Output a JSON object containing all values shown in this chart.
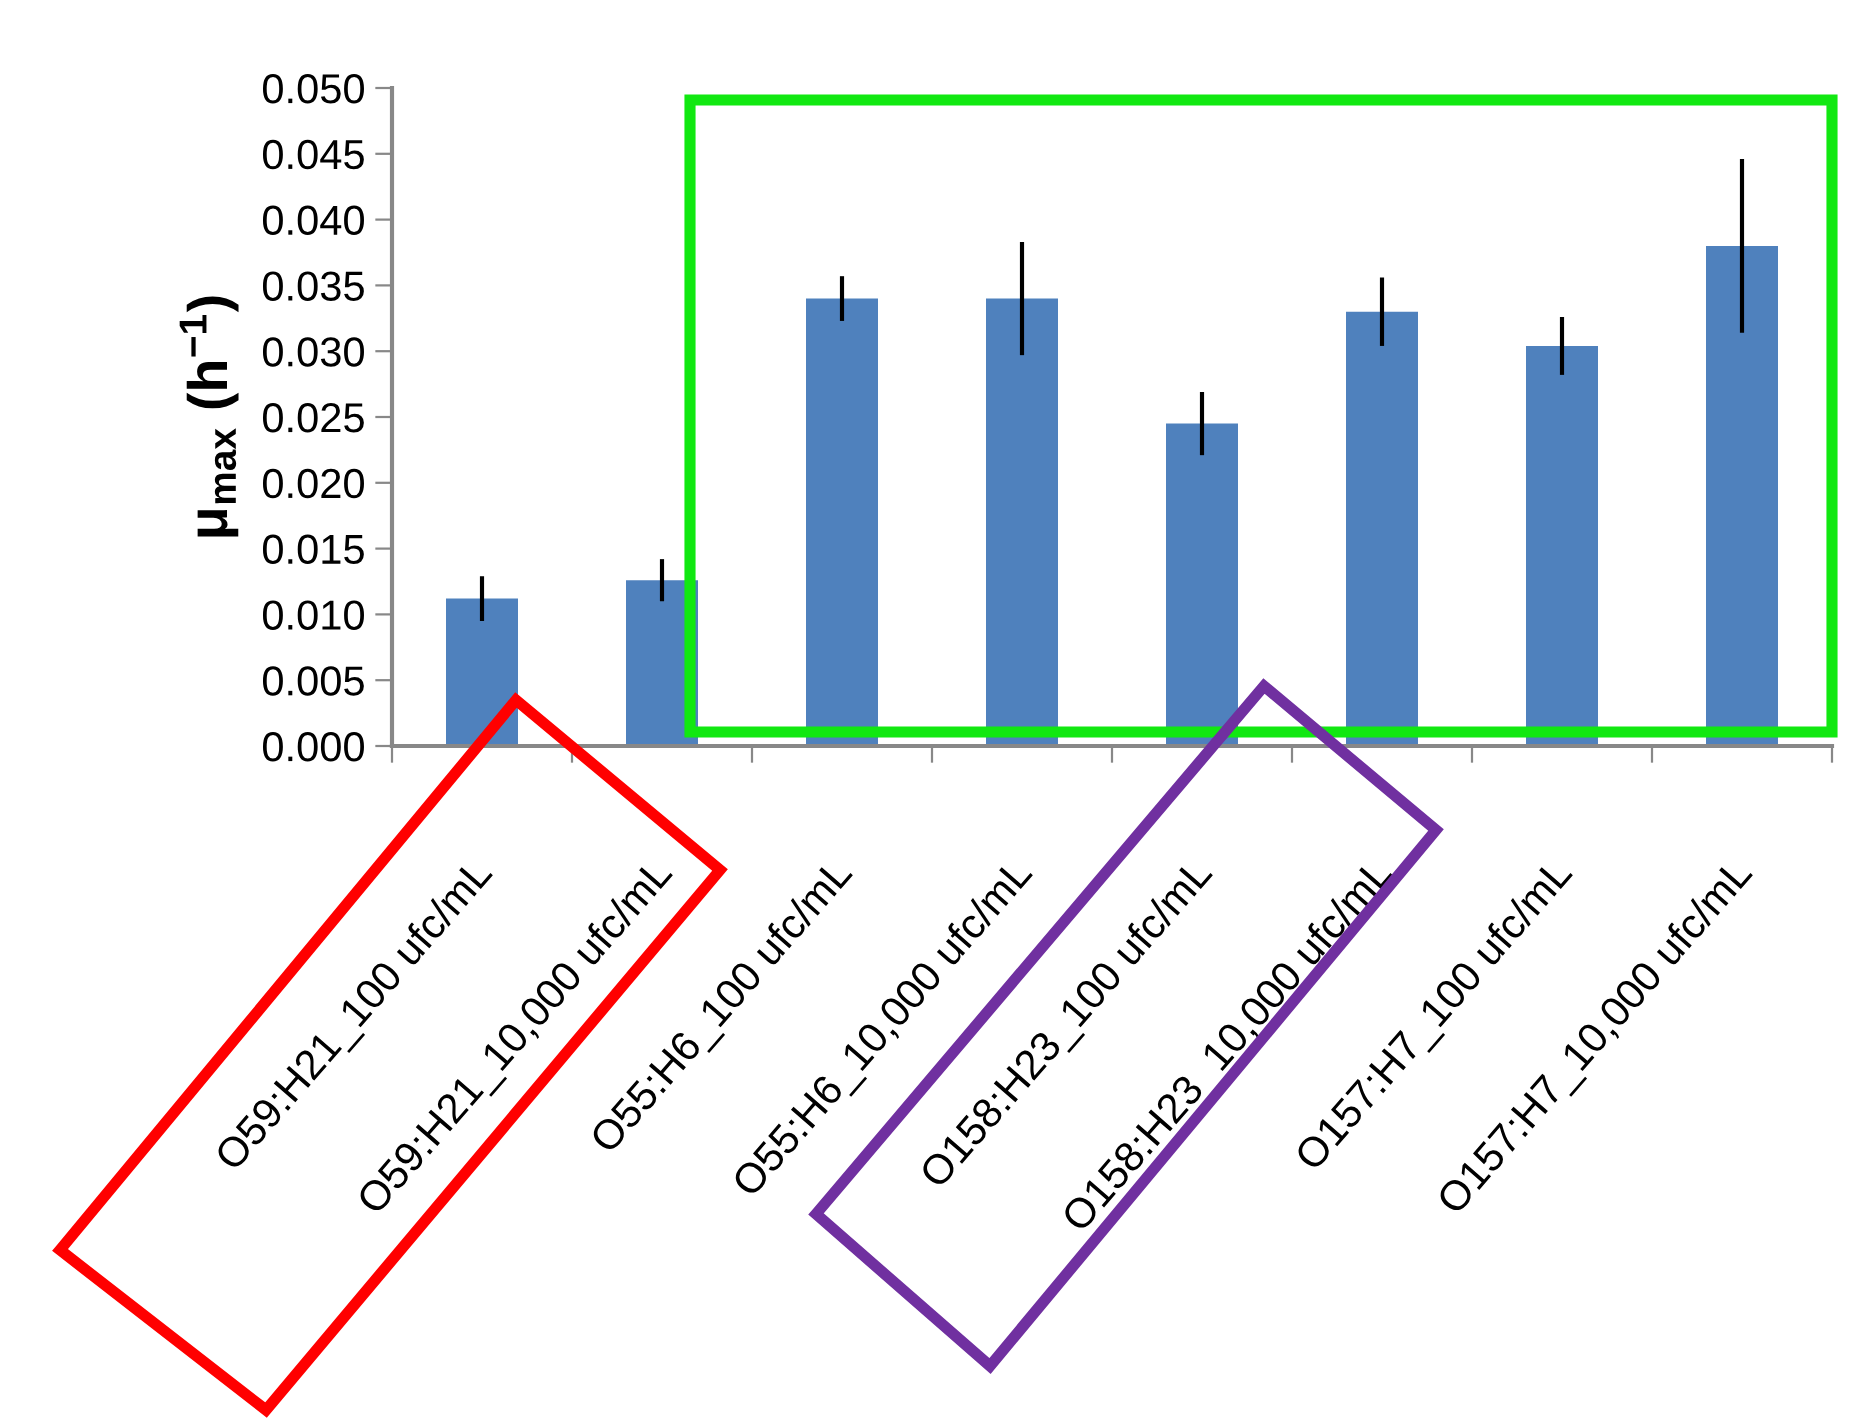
{
  "chart_data": {
    "type": "bar",
    "ylabel": "μ$_{max}$ (h$^{−1}$)",
    "categories": [
      "O59:H21_100 ufc/mL",
      "O59:H21_10,000 ufc/mL",
      "O55:H6_100 ufc/mL",
      "O55:H6_10,000 ufc/mL",
      "O158:H23_100 ufc/mL",
      "O158:H23_10,000 ufc/mL",
      "O157:H7_100 ufc/mL",
      "O157:H7_10,000 ufc/mL"
    ],
    "values": [
      0.0112,
      0.0126,
      0.034,
      0.034,
      0.0245,
      0.033,
      0.0304,
      0.038
    ],
    "errors": [
      0.0017,
      0.0016,
      0.0017,
      0.0043,
      0.0024,
      0.0026,
      0.0022,
      0.0066
    ],
    "color": "#4f81bd",
    "ylim": [
      0,
      0.05
    ],
    "yticks": [
      {
        "value": 0,
        "label": "0.000"
      },
      {
        "value": 0.005,
        "label": "0.005"
      },
      {
        "value": 0.01,
        "label": "0.010"
      },
      {
        "value": 0.015,
        "label": "0.015"
      },
      {
        "value": 0.02,
        "label": "0.020"
      },
      {
        "value": 0.025,
        "label": "0.025"
      },
      {
        "value": 0.03,
        "label": "0.030"
      },
      {
        "value": 0.035,
        "label": "0.035"
      },
      {
        "value": 0.04,
        "label": "0.040"
      },
      {
        "value": 0.045,
        "label": "0.045"
      },
      {
        "value": 0.05,
        "label": "0.050"
      }
    ],
    "grid": false,
    "legend": false
  }
}
